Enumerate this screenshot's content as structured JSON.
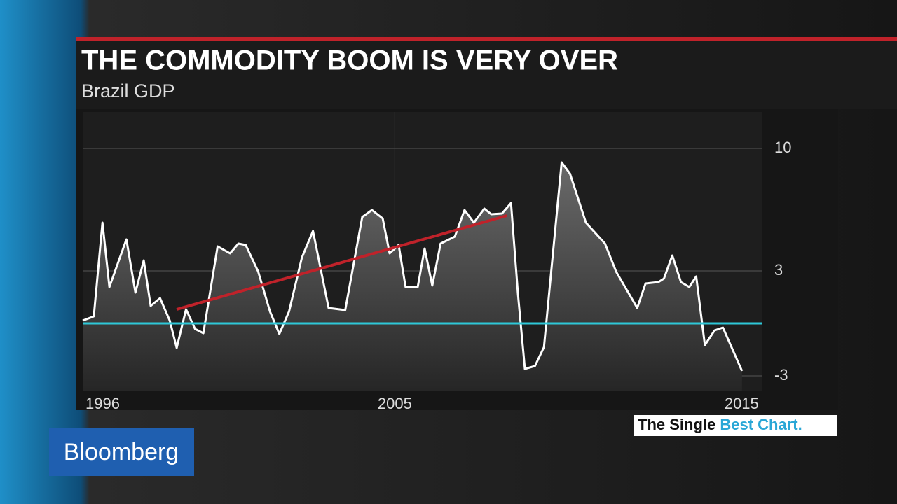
{
  "brand": "Bloomberg",
  "tagline": [
    "The Single",
    "Best Chart."
  ],
  "chart_data": {
    "type": "area",
    "title": "THE COMMODITY BOOM IS VERY OVER",
    "subtitle": "Brazil GDP",
    "x": [
      1996.0,
      1996.32,
      1996.57,
      1996.77,
      1997.26,
      1997.52,
      1997.76,
      1997.96,
      1998.23,
      1998.51,
      1998.71,
      1998.98,
      1999.24,
      1999.48,
      1999.89,
      2000.25,
      2000.49,
      2000.7,
      2001.06,
      2001.4,
      2001.67,
      2001.95,
      2002.32,
      2002.64,
      2003.09,
      2003.57,
      2004.06,
      2004.34,
      2004.65,
      2004.85,
      2005.11,
      2005.31,
      2005.66,
      2005.86,
      2006.08,
      2006.32,
      2006.73,
      2007.01,
      2007.28,
      2007.58,
      2007.78,
      2008.09,
      2008.35,
      2008.55,
      2008.75,
      2009.04,
      2009.3,
      2009.81,
      2010.05,
      2010.51,
      2011.06,
      2011.38,
      2011.99,
      2012.23,
      2012.6,
      2012.76,
      2013.0,
      2013.25,
      2013.49,
      2013.69,
      2013.94,
      2014.22,
      2014.46,
      2015.01
    ],
    "series": [
      {
        "color": "#ffffff",
        "values": [
          0.16,
          0.4,
          5.76,
          2.08,
          4.8,
          1.76,
          3.6,
          1.0,
          1.44,
          0.16,
          -1.4,
          0.8,
          -0.32,
          -0.56,
          4.4,
          4.0,
          4.56,
          4.48,
          2.96,
          0.68,
          -0.6,
          0.68,
          3.76,
          5.28,
          0.88,
          0.76,
          6.08,
          6.48,
          6.0,
          4.0,
          4.48,
          2.08,
          2.08,
          4.28,
          2.16,
          4.56,
          4.96,
          6.48,
          5.76,
          6.56,
          6.24,
          6.28,
          6.88,
          1.68,
          -2.6,
          -2.44,
          -1.36,
          9.2,
          8.56,
          5.76,
          4.56,
          2.96,
          0.88,
          2.28,
          2.36,
          2.56,
          3.88,
          2.36,
          2.08,
          2.68,
          -1.24,
          -0.4,
          -0.24,
          -2.72
        ]
      }
    ],
    "trend": {
      "color": "#c0222a",
      "x": [
        1998.71,
        2008.23
      ],
      "values": [
        0.8,
        6.16
      ]
    },
    "reference_line": {
      "value": 0,
      "color": "#2ec8d8"
    },
    "xlim": [
      1996,
      2015.6
    ],
    "xticks": [
      1996,
      2005,
      2015
    ],
    "ylim": [
      -3.84,
      12.08
    ],
    "yticks": [
      10,
      3,
      -3
    ],
    "grid": true
  }
}
